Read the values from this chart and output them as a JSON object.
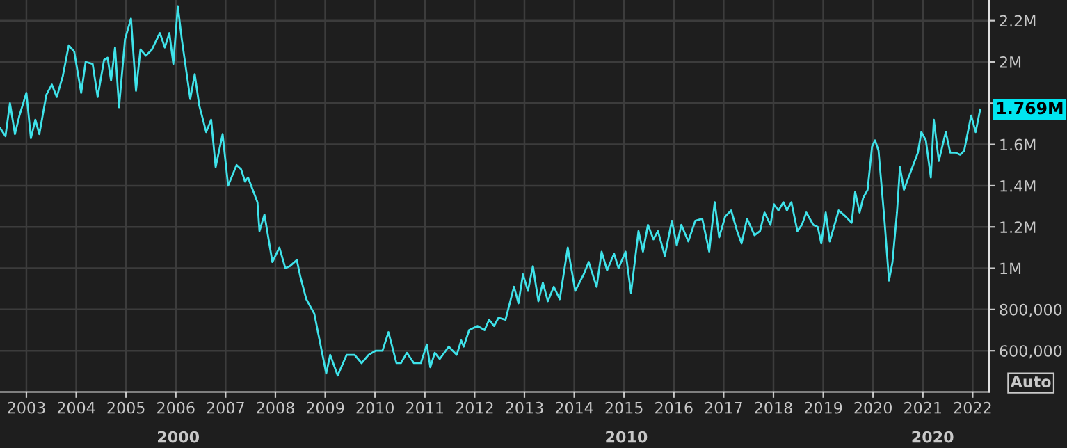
{
  "chart_data": {
    "type": "line",
    "x": [
      2002.47,
      2002.58,
      2002.67,
      2002.77,
      2002.86,
      2003.0,
      2003.09,
      2003.18,
      2003.26,
      2003.4,
      2003.51,
      2003.61,
      2003.73,
      2003.85,
      2003.96,
      2004.1,
      2004.19,
      2004.33,
      2004.43,
      2004.56,
      2004.63,
      2004.7,
      2004.78,
      2004.86,
      2004.98,
      2005.1,
      2005.2,
      2005.29,
      2005.4,
      2005.52,
      2005.68,
      2005.78,
      2005.87,
      2005.95,
      2006.04,
      2006.12,
      2006.29,
      2006.38,
      2006.47,
      2006.61,
      2006.71,
      2006.8,
      2006.94,
      2007.05,
      2007.22,
      2007.31,
      2007.39,
      2007.45,
      2007.64,
      2007.68,
      2007.78,
      2007.94,
      2008.08,
      2008.2,
      2008.29,
      2008.43,
      2008.5,
      2008.62,
      2008.78,
      2009.02,
      2009.1,
      2009.25,
      2009.43,
      2009.59,
      2009.73,
      2009.87,
      2010.01,
      2010.15,
      2010.27,
      2010.43,
      2010.52,
      2010.64,
      2010.78,
      2010.92,
      2011.04,
      2011.11,
      2011.2,
      2011.3,
      2011.48,
      2011.64,
      2011.73,
      2011.78,
      2011.89,
      2012.06,
      2012.2,
      2012.29,
      2012.39,
      2012.48,
      2012.62,
      2012.79,
      2012.88,
      2012.97,
      2013.07,
      2013.17,
      2013.28,
      2013.37,
      2013.47,
      2013.59,
      2013.71,
      2013.87,
      2014.02,
      2014.19,
      2014.29,
      2014.45,
      2014.55,
      2014.66,
      2014.8,
      2014.89,
      2015.03,
      2015.14,
      2015.29,
      2015.38,
      2015.48,
      2015.59,
      2015.68,
      2015.82,
      2015.96,
      2016.06,
      2016.15,
      2016.29,
      2016.43,
      2016.57,
      2016.71,
      2016.82,
      2016.91,
      2017.03,
      2017.15,
      2017.27,
      2017.36,
      2017.47,
      2017.62,
      2017.73,
      2017.82,
      2017.94,
      2018.01,
      2018.1,
      2018.2,
      2018.27,
      2018.36,
      2018.48,
      2018.57,
      2018.66,
      2018.8,
      2018.89,
      2018.96,
      2019.05,
      2019.13,
      2019.31,
      2019.45,
      2019.57,
      2019.64,
      2019.73,
      2019.8,
      2019.89,
      2019.98,
      2020.04,
      2020.11,
      2020.23,
      2020.32,
      2020.39,
      2020.48,
      2020.54,
      2020.62,
      2020.79,
      2020.9,
      2020.97,
      2021.06,
      2021.16,
      2021.22,
      2021.32,
      2021.46,
      2021.55,
      2021.66,
      2021.75,
      2021.83,
      2021.97,
      2022.06,
      2022.15
    ],
    "series": [
      {
        "color": "#3fe3ea",
        "values": [
          1680000,
          1640000,
          1800000,
          1650000,
          1740000,
          1850000,
          1630000,
          1720000,
          1650000,
          1840000,
          1890000,
          1830000,
          1930000,
          2080000,
          2050000,
          1850000,
          2000000,
          1990000,
          1830000,
          2010000,
          2020000,
          1910000,
          2070000,
          1780000,
          2110000,
          2210000,
          1860000,
          2060000,
          2030000,
          2060000,
          2140000,
          2070000,
          2140000,
          1990000,
          2270000,
          2110000,
          1820000,
          1940000,
          1790000,
          1660000,
          1720000,
          1490000,
          1650000,
          1400000,
          1500000,
          1480000,
          1420000,
          1440000,
          1320000,
          1180000,
          1260000,
          1030000,
          1100000,
          1000000,
          1010000,
          1040000,
          960000,
          850000,
          780000,
          490000,
          580000,
          480000,
          580000,
          580000,
          540000,
          580000,
          600000,
          600000,
          690000,
          540000,
          540000,
          590000,
          540000,
          540000,
          630000,
          520000,
          590000,
          560000,
          620000,
          580000,
          650000,
          620000,
          700000,
          720000,
          700000,
          750000,
          720000,
          760000,
          750000,
          910000,
          830000,
          970000,
          890000,
          1010000,
          840000,
          930000,
          840000,
          910000,
          850000,
          1100000,
          890000,
          970000,
          1030000,
          910000,
          1080000,
          990000,
          1070000,
          1000000,
          1080000,
          880000,
          1180000,
          1080000,
          1210000,
          1140000,
          1180000,
          1060000,
          1230000,
          1110000,
          1210000,
          1130000,
          1230000,
          1240000,
          1080000,
          1320000,
          1150000,
          1250000,
          1280000,
          1180000,
          1120000,
          1240000,
          1160000,
          1180000,
          1270000,
          1210000,
          1310000,
          1280000,
          1320000,
          1280000,
          1320000,
          1180000,
          1210000,
          1270000,
          1210000,
          1200000,
          1120000,
          1270000,
          1130000,
          1280000,
          1250000,
          1220000,
          1370000,
          1270000,
          1340000,
          1380000,
          1590000,
          1620000,
          1570000,
          1230000,
          940000,
          1030000,
          1270000,
          1490000,
          1380000,
          1490000,
          1560000,
          1660000,
          1620000,
          1440000,
          1720000,
          1520000,
          1660000,
          1560000,
          1560000,
          1550000,
          1570000,
          1740000,
          1660000,
          1769000
        ]
      }
    ],
    "xlim": [
      2002.47,
      2022.33
    ],
    "xticks": [
      2003,
      2004,
      2005,
      2006,
      2007,
      2008,
      2009,
      2010,
      2011,
      2012,
      2013,
      2014,
      2015,
      2016,
      2017,
      2018,
      2019,
      2020,
      2021,
      2022
    ],
    "ylim": [
      400000,
      2300000
    ],
    "yticks": [
      {
        "value": 600000,
        "label": "600,000"
      },
      {
        "value": 800000,
        "label": "800,000"
      },
      {
        "value": 1000000,
        "label": "1M"
      },
      {
        "value": 1200000,
        "label": "1.2M"
      },
      {
        "value": 1400000,
        "label": "1.4M"
      },
      {
        "value": 1600000,
        "label": "1.6M"
      },
      {
        "value": 1800000,
        "label": null
      },
      {
        "value": 2000000,
        "label": "2M"
      },
      {
        "value": 2200000,
        "label": "2.2M"
      }
    ],
    "annotations": [
      {
        "text": "1.769M",
        "x": 2022.15,
        "y": 1769000
      },
      "Auto",
      "2000",
      "2010",
      "2020"
    ],
    "grid": true,
    "marker": "none",
    "line_style": "solid"
  }
}
